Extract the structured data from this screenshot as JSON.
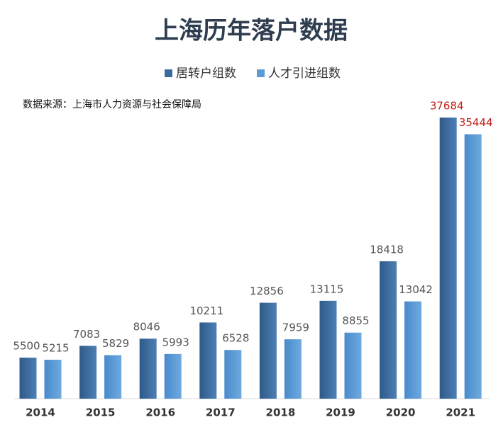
{
  "chart_data": {
    "type": "bar",
    "title": "上海历年落户数据",
    "note": "数据来源：上海市人力资源与社会保障局",
    "categories": [
      "2014",
      "2015",
      "2016",
      "2017",
      "2018",
      "2019",
      "2020",
      "2021"
    ],
    "series": [
      {
        "name": "居转户组数",
        "color": "#3b6a9c",
        "values": [
          5500,
          7083,
          8046,
          10211,
          12856,
          13115,
          18418,
          37684
        ]
      },
      {
        "name": "人才引进组数",
        "color": "#5b9bd5",
        "values": [
          5215,
          5829,
          5993,
          6528,
          7959,
          8855,
          13042,
          35444
        ]
      }
    ]
  }
}
